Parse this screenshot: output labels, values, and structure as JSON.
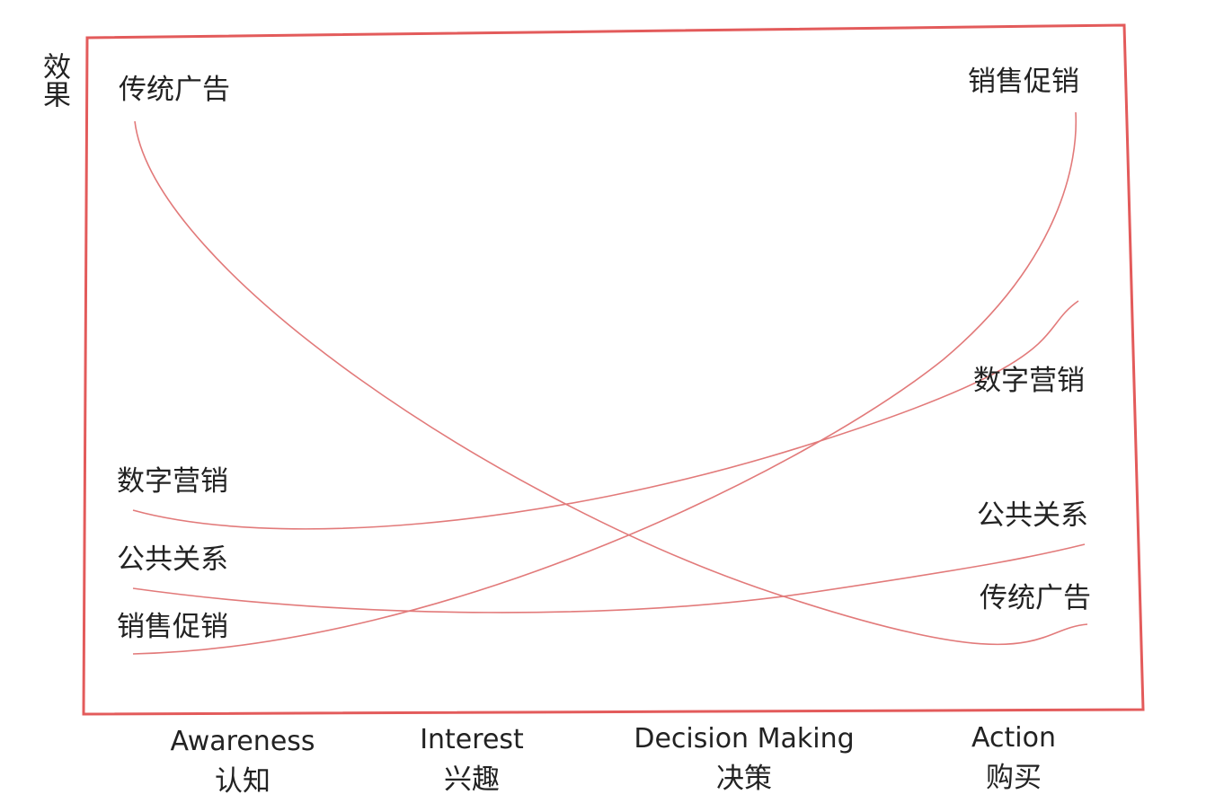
{
  "y_label": "效果",
  "stages": [
    {
      "en": "Awareness",
      "zh": "认知"
    },
    {
      "en": "Interest",
      "zh": "兴趣"
    },
    {
      "en": "Decision Making",
      "zh": "决策"
    },
    {
      "en": "Action",
      "zh": "购买"
    }
  ],
  "curves": [
    {
      "left_label": "传统广告",
      "right_label": "传统广告"
    },
    {
      "left_label": "数字营销",
      "right_label": "数字营销"
    },
    {
      "left_label": "公共关系",
      "right_label": "公共关系"
    },
    {
      "left_label": "销售促销",
      "right_label": "销售促销"
    }
  ]
}
